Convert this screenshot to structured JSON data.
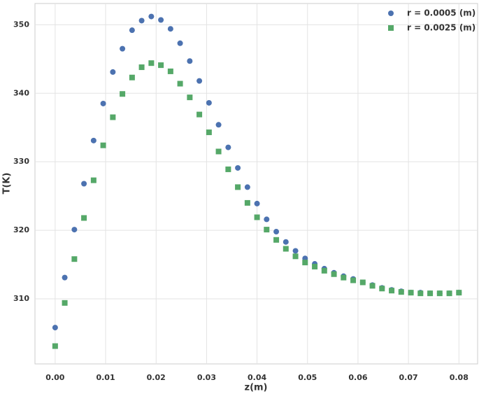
{
  "chart_data": {
    "type": "scatter",
    "x_label": "z(m)",
    "y_label": "T(K)",
    "x": [
      0,
      0.0019,
      0.00381,
      0.00571,
      0.00762,
      0.00952,
      0.01143,
      0.01333,
      0.01524,
      0.01714,
      0.01905,
      0.02095,
      0.02286,
      0.02476,
      0.02667,
      0.02857,
      0.03048,
      0.03238,
      0.03429,
      0.03619,
      0.0381,
      0.04,
      0.0419,
      0.04381,
      0.04571,
      0.04762,
      0.04952,
      0.05143,
      0.05333,
      0.05524,
      0.05714,
      0.05905,
      0.06095,
      0.06286,
      0.06476,
      0.06667,
      0.06857,
      0.07048,
      0.07238,
      0.07429,
      0.07619,
      0.0781,
      0.08
    ],
    "series": [
      {
        "name": "r = 0.0005 (m)",
        "color": "#4c72b0",
        "marker": "circle",
        "values": [
          305.8,
          313.1,
          320.1,
          326.8,
          333.1,
          338.5,
          343.1,
          346.5,
          349.2,
          350.6,
          351.2,
          350.7,
          349.4,
          347.3,
          344.7,
          341.8,
          338.6,
          335.4,
          332.1,
          329.1,
          326.3,
          323.9,
          321.6,
          319.8,
          318.3,
          317.0,
          315.9,
          315.1,
          314.4,
          313.8,
          313.3,
          312.9,
          312.4,
          312.0,
          311.6,
          311.3,
          311.1,
          310.9,
          310.9,
          310.8,
          310.8,
          310.8,
          310.9
        ]
      },
      {
        "name": "r = 0.0025 (m)",
        "color": "#55a868",
        "marker": "square",
        "values": [
          303.1,
          309.4,
          315.8,
          321.8,
          327.3,
          332.4,
          336.5,
          339.9,
          342.3,
          343.8,
          344.4,
          344.1,
          343.2,
          341.4,
          339.4,
          336.9,
          334.3,
          331.5,
          328.9,
          326.3,
          324.0,
          321.9,
          320.1,
          318.6,
          317.3,
          316.2,
          315.3,
          314.7,
          314.1,
          313.6,
          313.1,
          312.7,
          312.4,
          311.9,
          311.5,
          311.2,
          311.0,
          310.9,
          310.8,
          310.8,
          310.8,
          310.8,
          310.9
        ]
      }
    ],
    "xlim": [
      -0.004,
      0.0837
    ],
    "ylim": [
      300.5,
      353.1
    ],
    "xticks": [
      {
        "value": 0,
        "label": "0.00"
      },
      {
        "value": 0.01,
        "label": "0.01"
      },
      {
        "value": 0.02,
        "label": "0.02"
      },
      {
        "value": 0.03,
        "label": "0.03"
      },
      {
        "value": 0.04,
        "label": "0.04"
      },
      {
        "value": 0.05,
        "label": "0.05"
      },
      {
        "value": 0.06,
        "label": "0.06"
      },
      {
        "value": 0.07,
        "label": "0.07"
      },
      {
        "value": 0.08,
        "label": "0.08"
      }
    ],
    "yticks": [
      310,
      320,
      330,
      340,
      350
    ],
    "grid": true,
    "legend": "upper right"
  }
}
